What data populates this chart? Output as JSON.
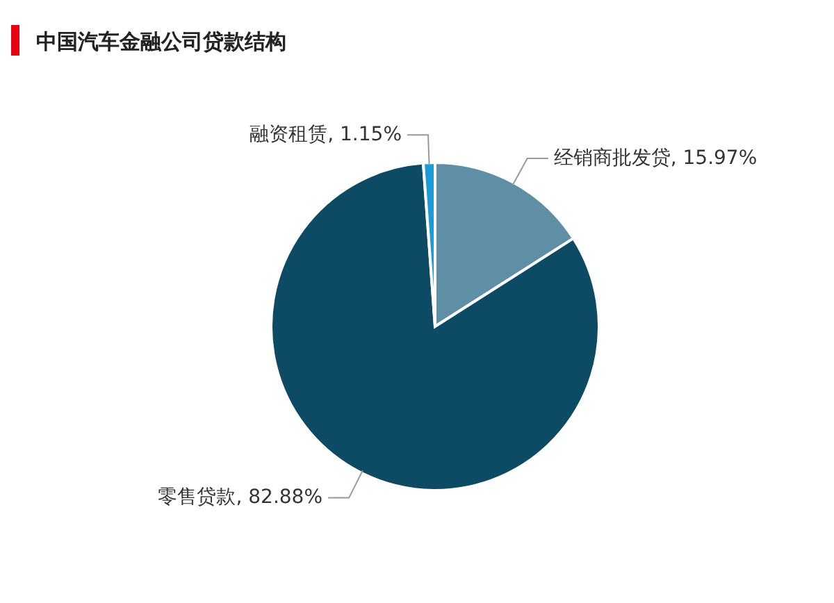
{
  "chart_data": {
    "type": "pie",
    "title": "中国汽车金融公司贷款结构",
    "categories": [
      "经销商批发贷",
      "零售贷款",
      "融资租赁"
    ],
    "values": [
      15.97,
      82.88,
      1.15
    ],
    "value_labels": [
      "15.97%",
      "82.88%",
      "1.15%"
    ],
    "colors": [
      "#5e8fa5",
      "#0d4a63",
      "#1c9bd7"
    ],
    "legend": false
  }
}
